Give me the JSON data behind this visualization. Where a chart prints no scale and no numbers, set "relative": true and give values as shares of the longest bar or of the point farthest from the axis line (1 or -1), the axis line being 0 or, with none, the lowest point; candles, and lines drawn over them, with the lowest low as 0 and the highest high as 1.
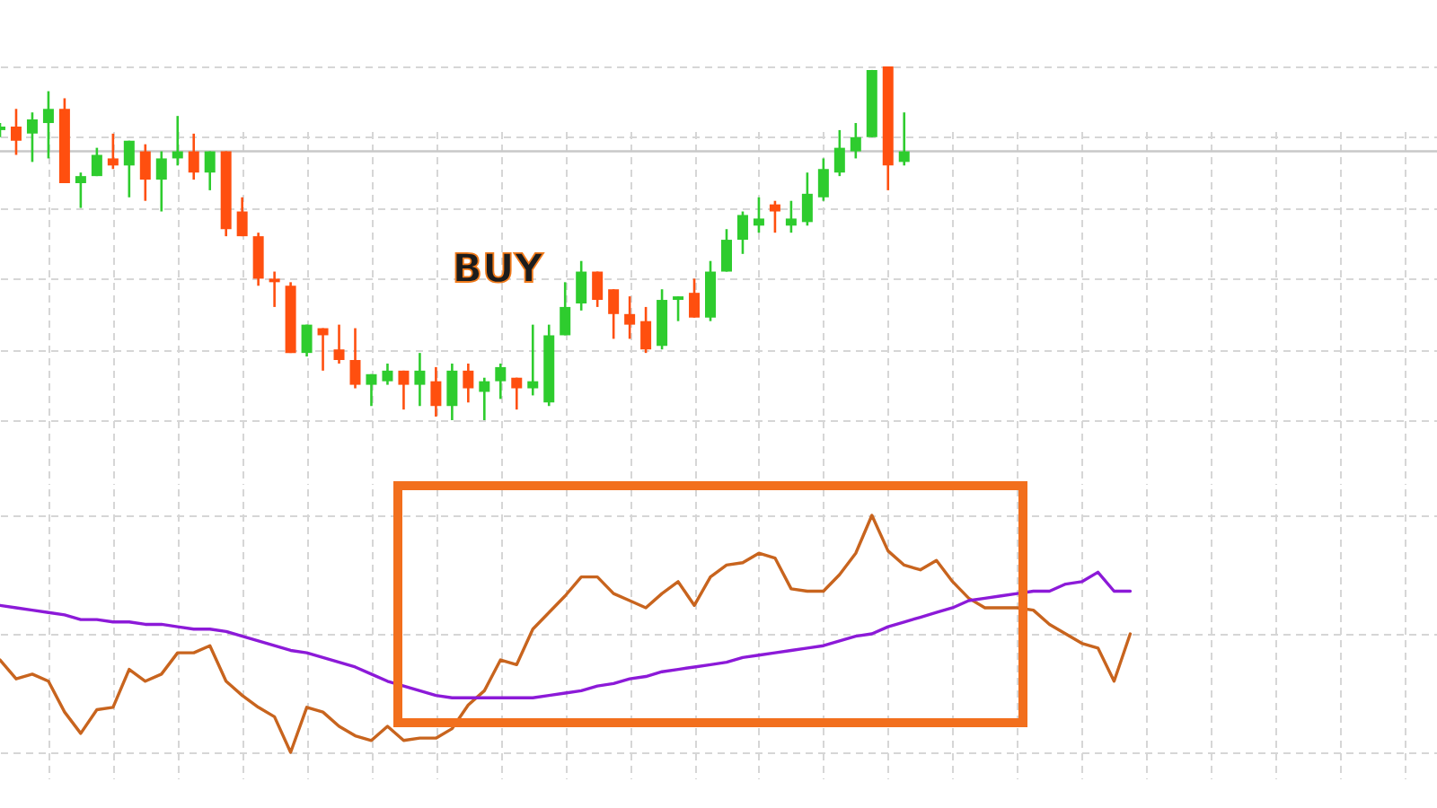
{
  "chart_data": [
    {
      "type": "candlestick",
      "relative": true,
      "grid": true,
      "categories": [
        null,
        null,
        null,
        null,
        null,
        null,
        null,
        null,
        null,
        null,
        null,
        null,
        null,
        null,
        null,
        null,
        null,
        null,
        null,
        null,
        null,
        null,
        null,
        null,
        null,
        null,
        null,
        null,
        null,
        null,
        null,
        null,
        null,
        null,
        null,
        null,
        null,
        null,
        null,
        null,
        null,
        null,
        null,
        null,
        null,
        null,
        null,
        null,
        null,
        null,
        null,
        null,
        null,
        null,
        null,
        null,
        null,
        null,
        null,
        null,
        null,
        null,
        null,
        null,
        null,
        null,
        null,
        null,
        null,
        null,
        null,
        null,
        null,
        null,
        null,
        null,
        null,
        null,
        null,
        null,
        null,
        null,
        null,
        null,
        null,
        null,
        null,
        null,
        null,
        null
      ],
      "ohlc": [
        [
          0.82,
          0.84,
          0.8,
          0.83
        ],
        [
          0.83,
          0.88,
          0.75,
          0.79
        ],
        [
          0.81,
          0.87,
          0.73,
          0.85
        ],
        [
          0.84,
          0.93,
          0.74,
          0.88
        ],
        [
          0.88,
          0.91,
          0.67,
          0.67
        ],
        [
          0.67,
          0.7,
          0.6,
          0.69
        ],
        [
          0.69,
          0.77,
          0.69,
          0.75
        ],
        [
          0.74,
          0.81,
          0.71,
          0.72
        ],
        [
          0.72,
          0.79,
          0.63,
          0.79
        ],
        [
          0.76,
          0.78,
          0.62,
          0.68
        ],
        [
          0.68,
          0.76,
          0.59,
          0.74
        ],
        [
          0.74,
          0.86,
          0.72,
          0.76
        ],
        [
          0.76,
          0.81,
          0.68,
          0.7
        ],
        [
          0.7,
          0.76,
          0.65,
          0.76
        ],
        [
          0.76,
          0.76,
          0.52,
          0.54
        ],
        [
          0.59,
          0.63,
          0.52,
          0.52
        ],
        [
          0.52,
          0.53,
          0.38,
          0.4
        ],
        [
          0.4,
          0.42,
          0.32,
          0.39
        ],
        [
          0.38,
          0.39,
          0.19,
          0.19
        ],
        [
          0.19,
          0.27,
          0.18,
          0.27
        ],
        [
          0.26,
          0.26,
          0.14,
          0.24
        ],
        [
          0.2,
          0.27,
          0.16,
          0.17
        ],
        [
          0.17,
          0.26,
          0.09,
          0.1
        ],
        [
          0.1,
          0.13,
          0.04,
          0.13
        ],
        [
          0.11,
          0.16,
          0.1,
          0.14
        ],
        [
          0.14,
          0.14,
          0.03,
          0.1
        ],
        [
          0.1,
          0.19,
          0.04,
          0.14
        ],
        [
          0.11,
          0.15,
          0.01,
          0.04
        ],
        [
          0.04,
          0.16,
          0,
          0.14
        ],
        [
          0.14,
          0.16,
          0.05,
          0.09
        ],
        [
          0.08,
          0.12,
          0,
          0.11
        ],
        [
          0.11,
          0.16,
          0.06,
          0.15
        ],
        [
          0.12,
          0.12,
          0.03,
          0.09
        ],
        [
          0.09,
          0.27,
          0.07,
          0.11
        ],
        [
          0.05,
          0.27,
          0.04,
          0.24
        ],
        [
          0.24,
          0.39,
          0.24,
          0.32
        ],
        [
          0.33,
          0.45,
          0.31,
          0.42
        ],
        [
          0.42,
          0.42,
          0.32,
          0.34
        ],
        [
          0.37,
          0.37,
          0.23,
          0.3
        ],
        [
          0.3,
          0.35,
          0.23,
          0.27
        ],
        [
          0.28,
          0.32,
          0.19,
          0.2
        ],
        [
          0.21,
          0.37,
          0.2,
          0.34
        ],
        [
          0.34,
          0.35,
          0.28,
          0.35
        ],
        [
          0.36,
          0.4,
          0.29,
          0.29
        ],
        [
          0.29,
          0.45,
          0.28,
          0.42
        ],
        [
          0.42,
          0.54,
          0.42,
          0.51
        ],
        [
          0.51,
          0.59,
          0.47,
          0.58
        ],
        [
          0.55,
          0.63,
          0.53,
          0.57
        ],
        [
          0.61,
          0.62,
          0.53,
          0.59
        ],
        [
          0.55,
          0.62,
          0.53,
          0.57
        ],
        [
          0.56,
          0.7,
          0.55,
          0.64
        ],
        [
          0.63,
          0.74,
          0.62,
          0.71
        ],
        [
          0.7,
          0.82,
          0.69,
          0.77
        ],
        [
          0.76,
          0.84,
          0.74,
          0.8
        ],
        [
          0.8,
          0.99,
          0.8,
          0.99
        ],
        [
          1,
          1,
          0.65,
          0.72
        ],
        [
          0.73,
          0.87,
          0.72,
          0.76
        ],
        null,
        null,
        null,
        null,
        null,
        null,
        null,
        null,
        null,
        null,
        null,
        null,
        null,
        null,
        null,
        null,
        null,
        null,
        null,
        null,
        null,
        null,
        null,
        null,
        null,
        null,
        null,
        null,
        null,
        null,
        null,
        null,
        null
      ],
      "colors": [
        "#2ecc2e",
        "#ff4f0f",
        "#2ecc2e",
        "#2ecc2e",
        "#ff4f0f",
        "#2ecc2e",
        "#2ecc2e",
        "#ff4f0f",
        "#2ecc2e",
        "#ff4f0f",
        "#2ecc2e",
        "#2ecc2e",
        "#ff4f0f",
        "#2ecc2e",
        "#ff4f0f",
        "#ff4f0f",
        "#ff4f0f",
        "#ff4f0f",
        "#ff4f0f",
        "#2ecc2e",
        "#ff4f0f",
        "#ff4f0f",
        "#ff4f0f",
        "#2ecc2e",
        "#2ecc2e",
        "#ff4f0f",
        "#2ecc2e",
        "#ff4f0f",
        "#2ecc2e",
        "#ff4f0f",
        "#2ecc2e",
        "#2ecc2e",
        "#ff4f0f",
        "#2ecc2e",
        "#2ecc2e",
        "#2ecc2e",
        "#2ecc2e",
        "#ff4f0f",
        "#ff4f0f",
        "#ff4f0f",
        "#ff4f0f",
        "#2ecc2e",
        "#2ecc2e",
        "#ff4f0f",
        "#2ecc2e",
        "#2ecc2e",
        "#2ecc2e",
        "#2ecc2e",
        "#ff4f0f",
        "#2ecc2e",
        "#2ecc2e",
        "#2ecc2e",
        "#2ecc2e",
        "#2ecc2e",
        "#2ecc2e",
        "#ff4f0f",
        "#2ecc2e",
        null,
        null,
        null,
        null,
        null,
        null,
        null,
        null,
        null,
        null,
        null,
        null,
        null,
        null,
        null,
        null,
        null,
        null,
        null,
        null,
        null,
        null,
        null,
        null,
        null,
        null,
        null,
        null,
        null,
        null,
        null,
        null,
        null
      ],
      "ref_lines": [
        {
          "axis": "y",
          "value": 0.76,
          "color": "#c8c8c8"
        }
      ],
      "annotations": [
        "BUY"
      ]
    },
    {
      "type": "line",
      "relative": true,
      "grid": true,
      "categories": [
        null,
        null,
        null,
        null,
        null,
        null,
        null,
        null,
        null,
        null,
        null,
        null,
        null,
        null,
        null,
        null,
        null,
        null,
        null,
        null,
        null,
        null,
        null,
        null,
        null,
        null,
        null,
        null,
        null,
        null,
        null,
        null,
        null,
        null,
        null,
        null,
        null,
        null,
        null,
        null,
        null,
        null,
        null,
        null,
        null,
        null,
        null,
        null,
        null,
        null,
        null,
        null,
        null,
        null,
        null,
        null,
        null,
        null,
        null,
        null,
        null,
        null,
        null,
        null,
        null,
        null,
        null,
        null,
        null,
        null,
        null,
        null,
        null,
        null,
        null,
        null,
        null,
        null,
        null,
        null,
        null,
        null,
        null,
        null,
        null,
        null,
        null,
        null,
        null,
        null
      ],
      "series": [
        {
          "color": "#c8641e",
          "values": [
            0.39,
            0.31,
            0.33,
            0.3,
            0.17,
            0.08,
            0.18,
            0.19,
            0.35,
            0.3,
            0.33,
            0.42,
            0.42,
            0.45,
            0.3,
            0.24,
            0.19,
            0.15,
            0,
            0.19,
            0.17,
            0.11,
            0.07,
            0.05,
            0.11,
            0.05,
            0.06,
            0.06,
            0.1,
            0.2,
            0.26,
            0.39,
            0.37,
            0.52,
            0.59,
            0.66,
            0.74,
            0.74,
            0.67,
            0.64,
            0.61,
            0.67,
            0.72,
            0.62,
            0.74,
            0.79,
            0.8,
            0.84,
            0.82,
            0.69,
            0.68,
            0.68,
            0.75,
            0.84,
            1,
            0.85,
            0.79,
            0.77,
            0.81,
            0.72,
            0.65,
            0.61,
            0.61,
            0.61,
            0.6,
            0.54,
            0.5,
            0.46,
            0.44,
            0.3,
            0.5,
            null,
            null,
            null,
            null,
            null,
            null,
            null,
            null,
            null,
            null,
            null,
            null,
            null,
            null,
            null,
            null,
            null,
            null,
            null
          ]
        },
        {
          "color": "#8c1ad8",
          "values": [
            0.62,
            0.61,
            0.6,
            0.59,
            0.58,
            0.56,
            0.56,
            0.55,
            0.55,
            0.54,
            0.54,
            0.53,
            0.52,
            0.52,
            0.51,
            0.49,
            0.47,
            0.45,
            0.43,
            0.42,
            0.4,
            0.38,
            0.36,
            0.33,
            0.3,
            0.28,
            0.26,
            0.24,
            0.23,
            0.23,
            0.23,
            0.23,
            0.23,
            0.23,
            0.24,
            0.25,
            0.26,
            0.28,
            0.29,
            0.31,
            0.32,
            0.34,
            0.35,
            0.36,
            0.37,
            0.38,
            0.4,
            0.41,
            0.42,
            0.43,
            0.44,
            0.45,
            0.47,
            0.49,
            0.5,
            0.53,
            0.55,
            0.57,
            0.59,
            0.61,
            0.64,
            0.65,
            0.66,
            0.67,
            0.68,
            0.68,
            0.71,
            0.72,
            0.76,
            0.68,
            0.68,
            null,
            null,
            null,
            null,
            null,
            null,
            null,
            null,
            null,
            null,
            null,
            null,
            null,
            null,
            null,
            null,
            null,
            null,
            null
          ]
        }
      ]
    }
  ]
}
